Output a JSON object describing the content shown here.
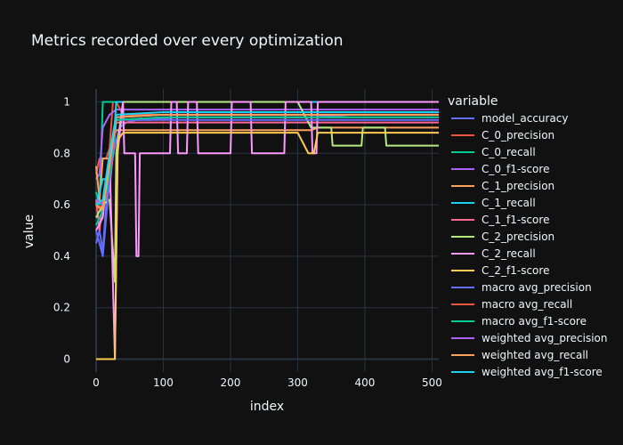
{
  "chart_data": {
    "type": "line",
    "title": "Metrics recorded over every optimization",
    "xlabel": "index",
    "ylabel": "value",
    "xlim": [
      0,
      510
    ],
    "ylim": [
      -0.05,
      1.05
    ],
    "xticks": [
      0,
      100,
      200,
      300,
      400,
      500
    ],
    "yticks": [
      0,
      0.2,
      0.4,
      0.6,
      0.8,
      1
    ],
    "grid": true,
    "background": "#111111",
    "grid_color": "#283442",
    "legend": {
      "title": "variable",
      "placement": "right"
    },
    "series": [
      {
        "name": "model_accuracy",
        "color": "#636efa",
        "points": [
          [
            0,
            0.45
          ],
          [
            5,
            0.5
          ],
          [
            10,
            0.42
          ],
          [
            15,
            0.6
          ],
          [
            20,
            0.7
          ],
          [
            26,
            0.8
          ],
          [
            30,
            0.85
          ],
          [
            35,
            0.9
          ],
          [
            45,
            0.92
          ],
          [
            60,
            0.93
          ],
          [
            80,
            0.93
          ],
          [
            120,
            0.94
          ],
          [
            160,
            0.94
          ],
          [
            200,
            0.94
          ],
          [
            260,
            0.94
          ],
          [
            320,
            0.94
          ],
          [
            380,
            0.95
          ],
          [
            430,
            0.95
          ],
          [
            510,
            0.95
          ]
        ]
      },
      {
        "name": "C_0_precision",
        "color": "#EF553B",
        "points": [
          [
            0,
            0.72
          ],
          [
            5,
            0.78
          ],
          [
            10,
            0.78
          ],
          [
            15,
            0.78
          ],
          [
            20,
            0.82
          ],
          [
            25,
            1
          ],
          [
            30,
            1
          ],
          [
            40,
            0.95
          ],
          [
            60,
            0.95
          ],
          [
            100,
            0.95
          ],
          [
            200,
            0.95
          ],
          [
            300,
            0.95
          ],
          [
            510,
            0.95
          ]
        ]
      },
      {
        "name": "C_0_recall",
        "color": "#00cc96",
        "points": [
          [
            0,
            0.65
          ],
          [
            5,
            0.6
          ],
          [
            10,
            1
          ],
          [
            20,
            1
          ],
          [
            30,
            1
          ],
          [
            40,
            1
          ],
          [
            100,
            1
          ],
          [
            200,
            1
          ],
          [
            300,
            1
          ],
          [
            430,
            1
          ],
          [
            510,
            1
          ]
        ]
      },
      {
        "name": "C_0_f1-score",
        "color": "#ab63fa",
        "points": [
          [
            0,
            0.7
          ],
          [
            5,
            0.72
          ],
          [
            10,
            0.9
          ],
          [
            20,
            0.95
          ],
          [
            30,
            0.97
          ],
          [
            60,
            0.97
          ],
          [
            100,
            0.97
          ],
          [
            200,
            0.97
          ],
          [
            300,
            0.97
          ],
          [
            510,
            0.97
          ]
        ]
      },
      {
        "name": "C_1_precision",
        "color": "#FFA15A",
        "points": [
          [
            0,
            0.75
          ],
          [
            5,
            0.62
          ],
          [
            10,
            0.78
          ],
          [
            15,
            0.78
          ],
          [
            20,
            0.78
          ],
          [
            25,
            0.85
          ],
          [
            30,
            0.89
          ],
          [
            60,
            0.89
          ],
          [
            100,
            0.89
          ],
          [
            200,
            0.89
          ],
          [
            300,
            0.89
          ],
          [
            320,
            0.89
          ],
          [
            330,
            0.9
          ],
          [
            400,
            0.9
          ],
          [
            430,
            0.9
          ],
          [
            510,
            0.9
          ]
        ]
      },
      {
        "name": "C_1_recall",
        "color": "#19d3f3",
        "points": [
          [
            0,
            0.6
          ],
          [
            5,
            0.65
          ],
          [
            10,
            0.7
          ],
          [
            15,
            0.7
          ],
          [
            20,
            0.7
          ],
          [
            25,
            0.8
          ],
          [
            30,
            1
          ],
          [
            40,
            1
          ],
          [
            60,
            1
          ],
          [
            100,
            1
          ],
          [
            200,
            1
          ],
          [
            300,
            1
          ],
          [
            430,
            1
          ],
          [
            510,
            1
          ]
        ]
      },
      {
        "name": "C_1_f1-score",
        "color": "#FF6692",
        "points": [
          [
            0,
            0.62
          ],
          [
            5,
            0.5
          ],
          [
            10,
            0.62
          ],
          [
            15,
            0.62
          ],
          [
            20,
            0.66
          ],
          [
            25,
            0.8
          ],
          [
            30,
            0.92
          ],
          [
            60,
            0.92
          ],
          [
            100,
            0.92
          ],
          [
            200,
            0.92
          ],
          [
            300,
            0.92
          ],
          [
            430,
            0.92
          ],
          [
            510,
            0.92
          ]
        ]
      },
      {
        "name": "C_2_precision",
        "color": "#B6E880",
        "points": [
          [
            0,
            0.55
          ],
          [
            10,
            0.6
          ],
          [
            20,
            0.62
          ],
          [
            28,
            0.3
          ],
          [
            30,
            0.8
          ],
          [
            35,
            0.9
          ],
          [
            40,
            1
          ],
          [
            100,
            1
          ],
          [
            200,
            1
          ],
          [
            300,
            1
          ],
          [
            320,
            0.9
          ],
          [
            350,
            0.9
          ],
          [
            352,
            0.83
          ],
          [
            395,
            0.83
          ],
          [
            397,
            0.9
          ],
          [
            430,
            0.9
          ],
          [
            432,
            0.83
          ],
          [
            510,
            0.83
          ]
        ]
      },
      {
        "name": "C_2_recall",
        "color": "#FF97FF",
        "points": [
          [
            0,
            0.5
          ],
          [
            10,
            0.55
          ],
          [
            20,
            0.8
          ],
          [
            28,
            0
          ],
          [
            32,
            0.8
          ],
          [
            40,
            1
          ],
          [
            42,
            0.8
          ],
          [
            58,
            0.8
          ],
          [
            60,
            0.4
          ],
          [
            63,
            0.4
          ],
          [
            65,
            0.8
          ],
          [
            100,
            0.8
          ],
          [
            110,
            0.8
          ],
          [
            112,
            1
          ],
          [
            120,
            1
          ],
          [
            122,
            0.8
          ],
          [
            135,
            0.8
          ],
          [
            137,
            1
          ],
          [
            150,
            1
          ],
          [
            152,
            0.8
          ],
          [
            200,
            0.8
          ],
          [
            202,
            1
          ],
          [
            230,
            1
          ],
          [
            232,
            0.8
          ],
          [
            280,
            0.8
          ],
          [
            282,
            1
          ],
          [
            320,
            1
          ],
          [
            322,
            0.8
          ],
          [
            328,
            0.8
          ],
          [
            330,
            1
          ],
          [
            428,
            1
          ],
          [
            430,
            1
          ],
          [
            510,
            1
          ]
        ]
      },
      {
        "name": "C_2_f1-score",
        "color": "#FECB52",
        "points": [
          [
            0,
            0
          ],
          [
            20,
            0
          ],
          [
            28,
            0
          ],
          [
            32,
            0.85
          ],
          [
            40,
            0.88
          ],
          [
            60,
            0.88
          ],
          [
            100,
            0.88
          ],
          [
            200,
            0.88
          ],
          [
            300,
            0.88
          ],
          [
            316,
            0.8
          ],
          [
            324,
            0.8
          ],
          [
            330,
            0.88
          ],
          [
            430,
            0.88
          ],
          [
            510,
            0.88
          ]
        ]
      },
      {
        "name": "macro avg_precision",
        "color": "#636efa",
        "points": [
          [
            0,
            0.5
          ],
          [
            5,
            0.45
          ],
          [
            10,
            0.4
          ],
          [
            20,
            0.7
          ],
          [
            30,
            0.93
          ],
          [
            60,
            0.93
          ],
          [
            200,
            0.93
          ],
          [
            300,
            0.93
          ],
          [
            510,
            0.93
          ]
        ]
      },
      {
        "name": "macro avg_recall",
        "color": "#EF553B",
        "points": [
          [
            0,
            0.58
          ],
          [
            10,
            0.6
          ],
          [
            20,
            0.75
          ],
          [
            30,
            0.93
          ],
          [
            100,
            0.94
          ],
          [
            200,
            0.94
          ],
          [
            300,
            0.94
          ],
          [
            510,
            0.94
          ]
        ]
      },
      {
        "name": "macro avg_f1-score",
        "color": "#00cc96",
        "points": [
          [
            0,
            0.52
          ],
          [
            10,
            0.58
          ],
          [
            20,
            0.72
          ],
          [
            30,
            0.93
          ],
          [
            100,
            0.94
          ],
          [
            200,
            0.94
          ],
          [
            300,
            0.94
          ],
          [
            510,
            0.94
          ]
        ]
      },
      {
        "name": "weighted avg_precision",
        "color": "#ab63fa",
        "points": [
          [
            0,
            0.62
          ],
          [
            10,
            0.6
          ],
          [
            20,
            0.75
          ],
          [
            30,
            0.94
          ],
          [
            100,
            0.95
          ],
          [
            200,
            0.95
          ],
          [
            300,
            0.95
          ],
          [
            510,
            0.95
          ]
        ]
      },
      {
        "name": "weighted avg_recall",
        "color": "#FFA15A",
        "points": [
          [
            0,
            0.6
          ],
          [
            10,
            0.58
          ],
          [
            20,
            0.76
          ],
          [
            30,
            0.94
          ],
          [
            100,
            0.95
          ],
          [
            200,
            0.95
          ],
          [
            300,
            0.95
          ],
          [
            510,
            0.95
          ]
        ]
      },
      {
        "name": "weighted avg_f1-score",
        "color": "#19d3f3",
        "points": [
          [
            0,
            0.6
          ],
          [
            10,
            0.62
          ],
          [
            20,
            0.8
          ],
          [
            30,
            0.95
          ],
          [
            100,
            0.96
          ],
          [
            200,
            0.96
          ],
          [
            300,
            0.96
          ],
          [
            510,
            0.96
          ]
        ]
      }
    ]
  }
}
